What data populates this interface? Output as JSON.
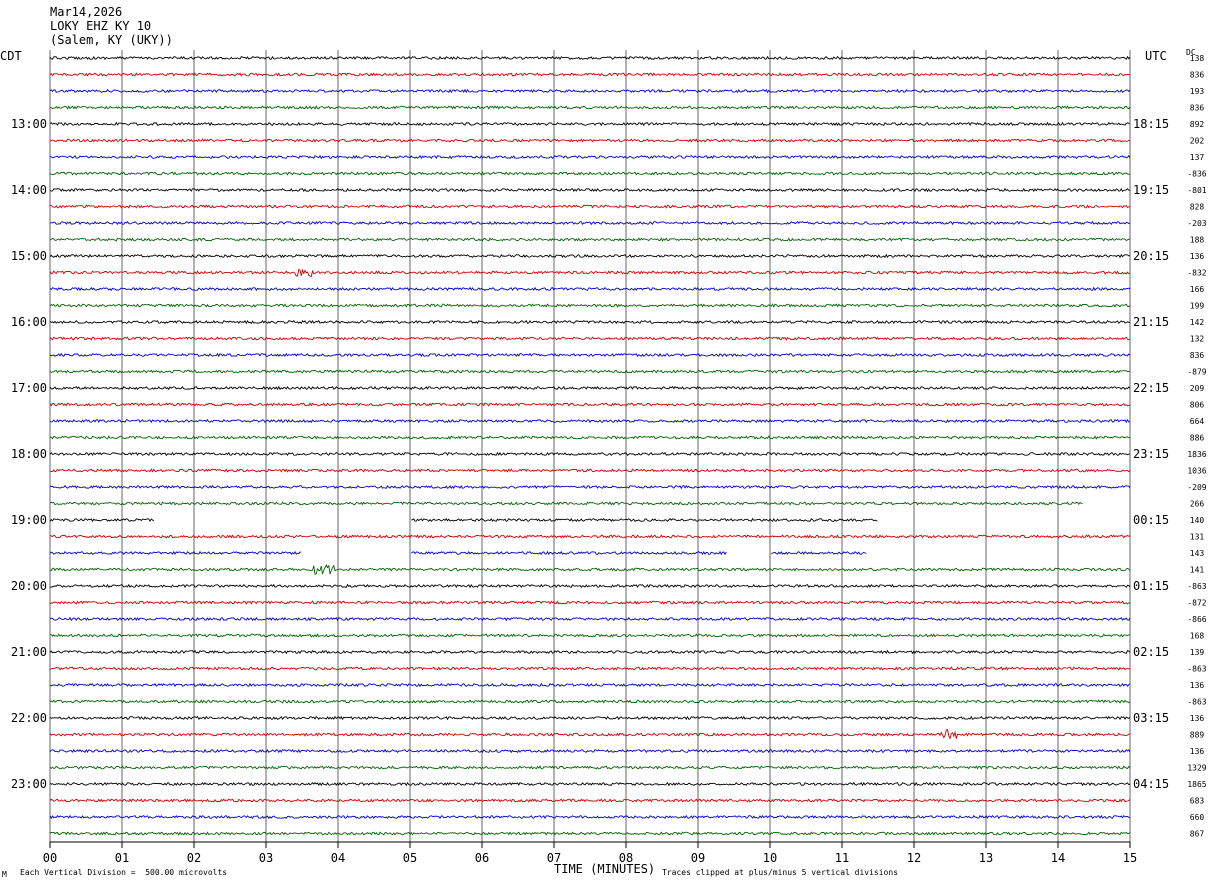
{
  "header": {
    "date": "Mar14,2026",
    "station": "LOKY EHZ KY 10",
    "location": "(Salem, KY (UKY))"
  },
  "left_tz": "CDT",
  "right_tz": "UTC",
  "dc_label": "DC",
  "footer": {
    "scale_mark": "M",
    "scale": "Each Vertical Division =  500.00 microvolts",
    "clip": "Traces clipped at plus/minus 5 vertical divisions"
  },
  "colors": {
    "trace_cycle": [
      "#000000",
      "#cc0000",
      "#0000cc",
      "#006600"
    ],
    "grid": "#000000"
  },
  "chart_data": {
    "type": "line",
    "title": "",
    "xlabel": "TIME (MINUTES)",
    "ylabel": "",
    "xlim": [
      0,
      15
    ],
    "x_ticks": [
      "00",
      "01",
      "02",
      "03",
      "04",
      "05",
      "06",
      "07",
      "08",
      "09",
      "10",
      "11",
      "12",
      "13",
      "14",
      "15"
    ],
    "grid": true,
    "left_hour_labels": [
      "13:00",
      "14:00",
      "15:00",
      "16:00",
      "17:00",
      "18:00",
      "19:00",
      "20:00",
      "21:00",
      "22:00",
      "23:00"
    ],
    "right_hour_labels": [
      "18:15",
      "19:15",
      "20:15",
      "21:15",
      "22:15",
      "23:15",
      "00:15",
      "01:15",
      "02:15",
      "03:15",
      "04:15"
    ],
    "dc_offsets": [
      "138",
      "836",
      "193",
      "836",
      "892",
      "202",
      "137",
      "-836",
      "-801",
      "828",
      "-203",
      "188",
      "136",
      "-832",
      "166",
      "199",
      "142",
      "132",
      "836",
      "-879",
      "209",
      "806",
      "664",
      "886",
      "1836",
      "1036",
      "-209",
      "266",
      "140",
      "131",
      "143",
      "141",
      "-863",
      "-872",
      "-866",
      "168",
      "139",
      "-863",
      "136",
      "-863",
      "136",
      "889",
      "136",
      "1329",
      "1865",
      "683",
      "660",
      "867"
    ],
    "traces": [
      {
        "gaps": [],
        "events": []
      },
      {
        "gaps": [],
        "events": []
      },
      {
        "gaps": [],
        "events": []
      },
      {
        "gaps": [],
        "events": []
      },
      {
        "gaps": [],
        "events": []
      },
      {
        "gaps": [],
        "events": []
      },
      {
        "gaps": [],
        "events": []
      },
      {
        "gaps": [],
        "events": []
      },
      {
        "gaps": [],
        "events": []
      },
      {
        "gaps": [],
        "events": []
      },
      {
        "gaps": [],
        "events": []
      },
      {
        "gaps": [],
        "events": []
      },
      {
        "gaps": [],
        "events": []
      },
      {
        "gaps": [],
        "events": [
          {
            "start": 3.4,
            "end": 3.65,
            "amp": 5
          }
        ]
      },
      {
        "gaps": [],
        "events": []
      },
      {
        "gaps": [],
        "events": []
      },
      {
        "gaps": [],
        "events": []
      },
      {
        "gaps": [],
        "events": []
      },
      {
        "gaps": [],
        "events": []
      },
      {
        "gaps": [],
        "events": []
      },
      {
        "gaps": [],
        "events": []
      },
      {
        "gaps": [],
        "events": []
      },
      {
        "gaps": [],
        "events": []
      },
      {
        "gaps": [],
        "events": []
      },
      {
        "gaps": [],
        "events": []
      },
      {
        "gaps": [],
        "events": []
      },
      {
        "gaps": [],
        "events": []
      },
      {
        "gaps": [
          [
            14.35,
            15
          ]
        ],
        "events": []
      },
      {
        "gaps": [
          [
            1.45,
            5.0
          ],
          [
            11.5,
            15
          ]
        ],
        "events": []
      },
      {
        "gaps": [],
        "events": []
      },
      {
        "gaps": [
          [
            3.5,
            5.0
          ],
          [
            9.4,
            10.0
          ],
          [
            11.35,
            15
          ]
        ],
        "events": []
      },
      {
        "gaps": [],
        "events": [
          {
            "start": 3.65,
            "end": 3.95,
            "amp": 5
          }
        ]
      },
      {
        "gaps": [],
        "events": []
      },
      {
        "gaps": [],
        "events": []
      },
      {
        "gaps": [],
        "events": []
      },
      {
        "gaps": [],
        "events": []
      },
      {
        "gaps": [],
        "events": []
      },
      {
        "gaps": [],
        "events": []
      },
      {
        "gaps": [],
        "events": []
      },
      {
        "gaps": [],
        "events": []
      },
      {
        "gaps": [],
        "events": []
      },
      {
        "gaps": [],
        "events": [
          {
            "start": 12.35,
            "end": 12.6,
            "amp": 5
          }
        ]
      },
      {
        "gaps": [],
        "events": []
      },
      {
        "gaps": [],
        "events": []
      },
      {
        "gaps": [],
        "events": []
      },
      {
        "gaps": [],
        "events": []
      },
      {
        "gaps": [],
        "events": []
      },
      {
        "gaps": [],
        "events": []
      }
    ]
  }
}
